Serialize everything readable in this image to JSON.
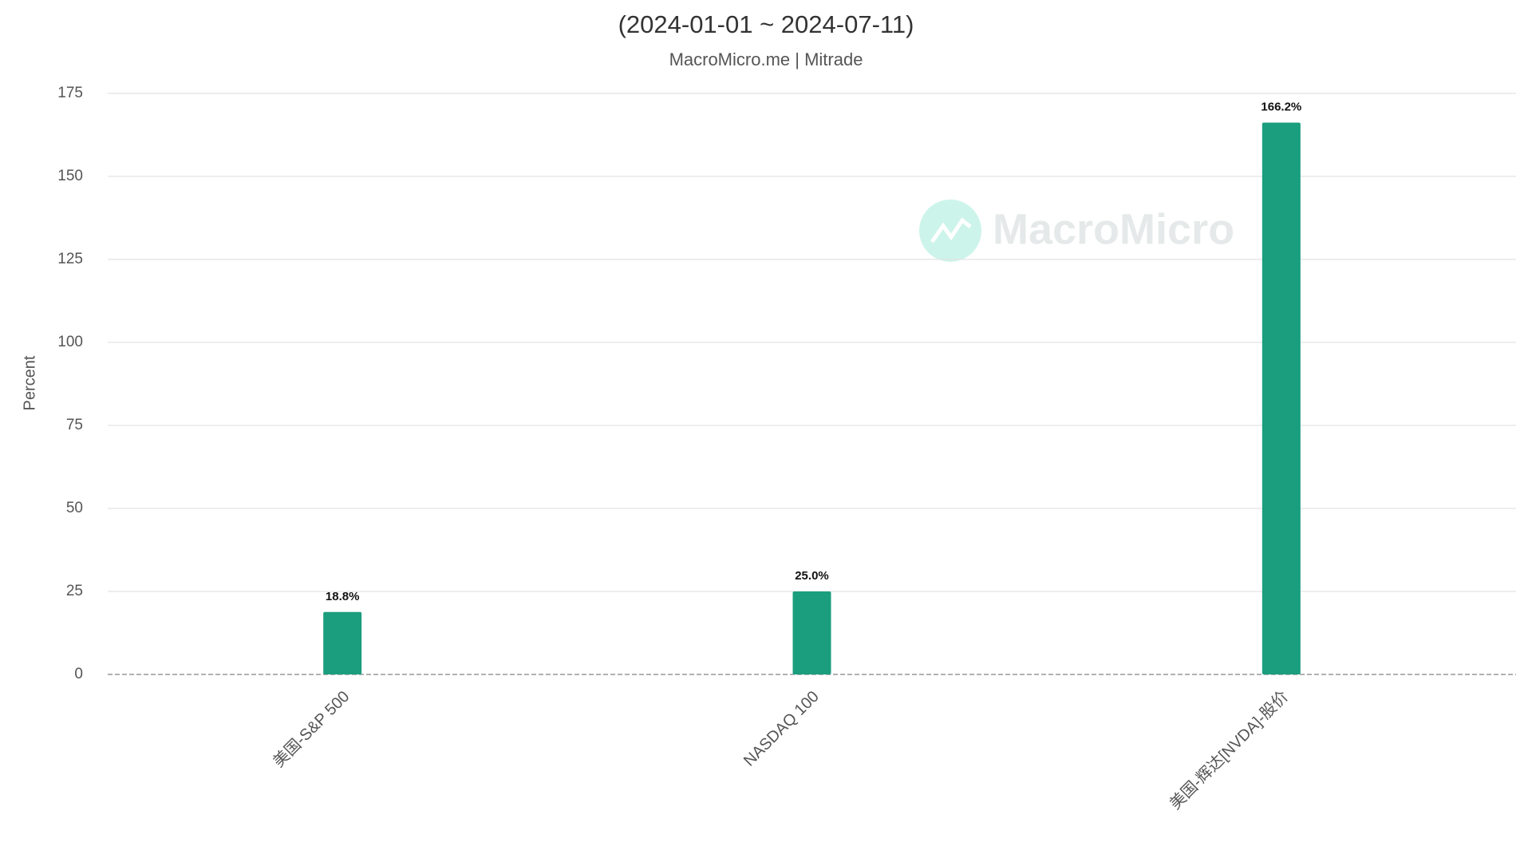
{
  "chart_data": {
    "type": "bar",
    "title": "(2024-01-01 ~ 2024-07-11)",
    "subtitle": "MacroMicro.me | Mitrade",
    "y_label": "Percent",
    "watermark": "MacroMicro",
    "categories": [
      "美国-S&P 500",
      "NASDAQ 100",
      "美国-辉达[NVDA]-股价"
    ],
    "values": [
      18.8,
      25.0,
      166.2
    ],
    "value_labels": [
      "18.8%",
      "25.0%",
      "166.2%"
    ],
    "color": "#1a9e7e",
    "ylim": [
      0,
      175
    ],
    "yticks": [
      0,
      25,
      50,
      75,
      100,
      125,
      150,
      175
    ],
    "grid": true
  }
}
